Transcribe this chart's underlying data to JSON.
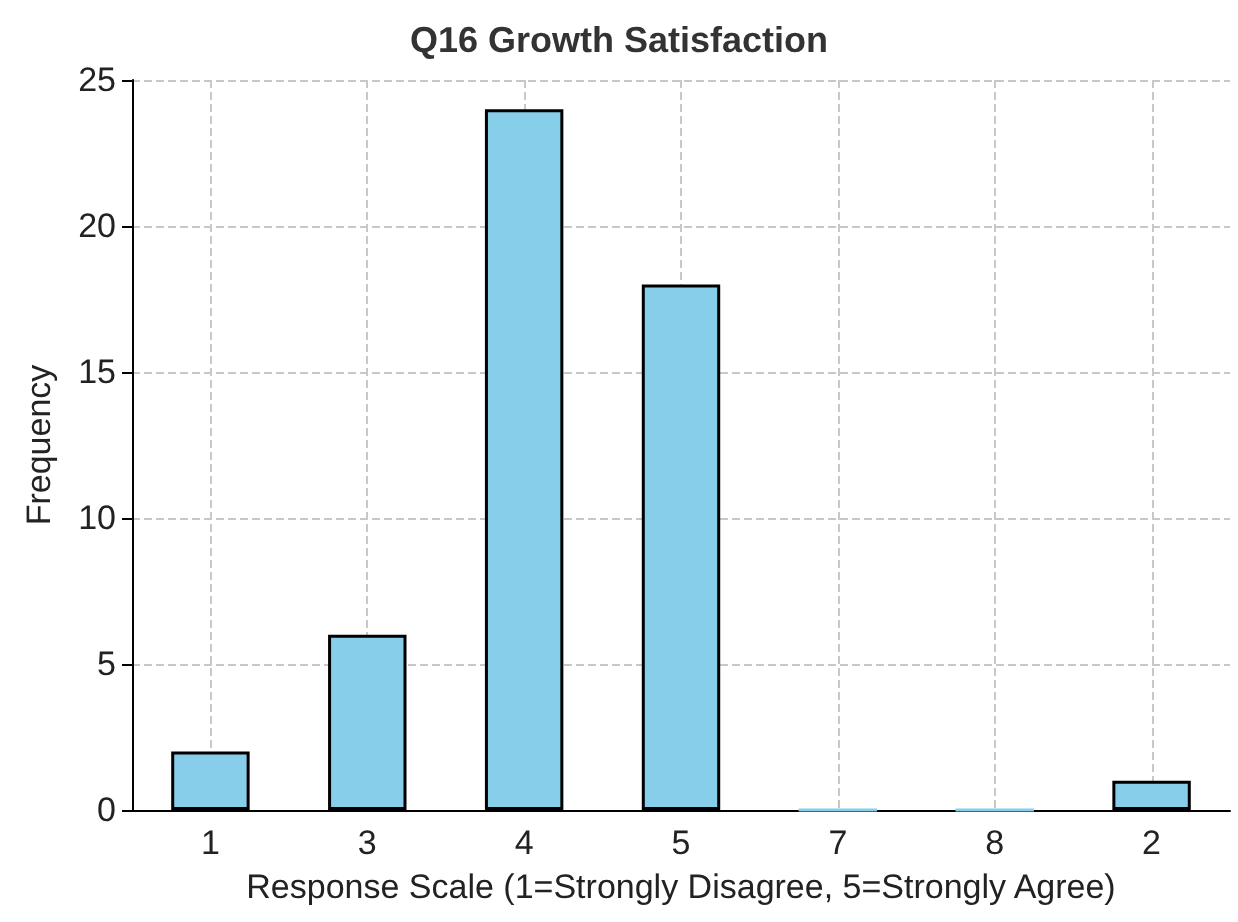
{
  "chart_data": {
    "type": "bar",
    "title": "Q16 Growth Satisfaction",
    "xlabel": "Response Scale (1=Strongly Disagree, 5=Strongly Agree)",
    "ylabel": "Frequency",
    "categories": [
      "1",
      "3",
      "4",
      "5",
      "7",
      "8",
      "2"
    ],
    "values": [
      2,
      6,
      24,
      18,
      0,
      0,
      1
    ],
    "color": "#87ceeb",
    "ylim": [
      0,
      25
    ],
    "yticks": [
      0,
      5,
      10,
      15,
      20,
      25
    ],
    "grid": true
  }
}
